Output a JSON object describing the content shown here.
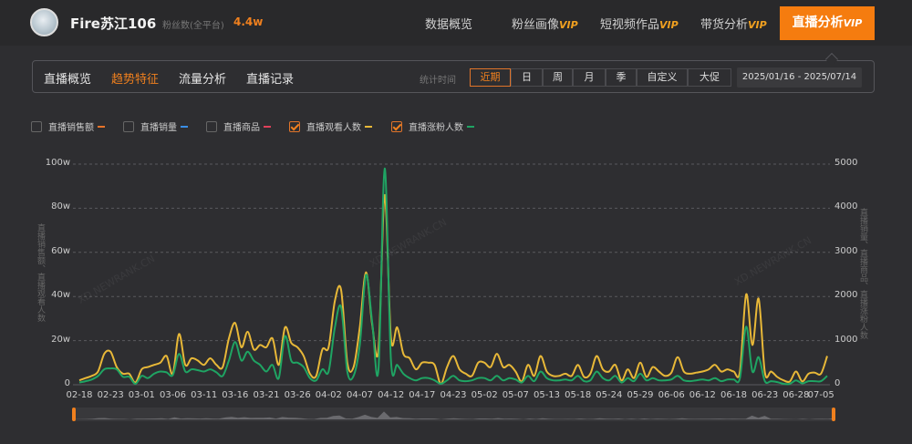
{
  "header": {
    "name": "Fire苏江106",
    "fans_label": "粉丝数(全平台)",
    "fans_value": "4.4w",
    "nav": [
      {
        "label": "数据概览",
        "vip": ""
      },
      {
        "label": "粉丝画像",
        "vip": "VIP"
      },
      {
        "label": "短视频作品",
        "vip": "VIP"
      },
      {
        "label": "带货分析",
        "vip": "VIP"
      },
      {
        "label": "直播分析",
        "vip": "VIP",
        "active": true
      }
    ]
  },
  "subnav": {
    "tabs": [
      "直播概览",
      "趋势特征",
      "流量分析",
      "直播记录"
    ],
    "active_tab": "趋势特征",
    "stat_time_label": "统计时间",
    "periods": [
      "近期",
      "日",
      "周",
      "月",
      "季",
      "自定义",
      "大促"
    ],
    "active_period": "近期",
    "date_range": "2025/01/16 - 2025/07/14"
  },
  "legend": [
    {
      "label": "直播销售额",
      "checked": false,
      "color": "#e8742a"
    },
    {
      "label": "直播销量",
      "checked": false,
      "color": "#3a8ee6"
    },
    {
      "label": "直播商品",
      "checked": false,
      "color": "#e0405a"
    },
    {
      "label": "直播观看人数",
      "checked": true,
      "color": "#e8b838"
    },
    {
      "label": "直播涨粉人数",
      "checked": true,
      "color": "#1fa463"
    }
  ],
  "watermark": "XD.NEWRANK.CN",
  "chart_data": {
    "type": "line",
    "left_axis": {
      "title": "直播销售额、直播观看人数",
      "ticks": [
        "0",
        "20w",
        "40w",
        "60w",
        "80w",
        "100w"
      ],
      "range": [
        0,
        100
      ],
      "unit": "w"
    },
    "right_axis": {
      "title": "直播销量、直播商品、直播涨粉人数",
      "ticks": [
        "0",
        "1000",
        "2000",
        "3000",
        "4000",
        "5000"
      ],
      "range": [
        0,
        5000
      ]
    },
    "grid": true,
    "x_ticks": [
      "02-18",
      "02-23",
      "03-01",
      "03-06",
      "03-11",
      "03-16",
      "03-21",
      "03-26",
      "04-02",
      "04-07",
      "04-12",
      "04-17",
      "04-23",
      "05-02",
      "05-07",
      "05-13",
      "05-18",
      "05-24",
      "05-29",
      "06-06",
      "06-12",
      "06-18",
      "06-23",
      "06-28",
      "07-05"
    ],
    "categories": [
      "02-18",
      "02-19",
      "02-20",
      "02-21",
      "02-22",
      "02-23",
      "02-24",
      "02-25",
      "02-27",
      "02-28",
      "03-01",
      "03-02",
      "03-03",
      "03-04",
      "03-05",
      "03-06",
      "03-07",
      "03-08",
      "03-09",
      "03-10",
      "03-11",
      "03-12",
      "03-13",
      "03-14",
      "03-15",
      "03-16",
      "03-17",
      "03-18",
      "03-19",
      "03-20",
      "03-21",
      "03-22",
      "03-23",
      "03-24",
      "03-25",
      "03-26",
      "03-27",
      "03-28",
      "03-30",
      "03-31",
      "04-02",
      "04-03",
      "04-04",
      "04-05",
      "04-06",
      "04-07",
      "04-08",
      "04-09",
      "04-10",
      "04-11",
      "04-12",
      "04-13",
      "04-14",
      "04-15",
      "04-16",
      "04-17",
      "04-18",
      "04-19",
      "04-21",
      "04-22",
      "04-23",
      "04-25",
      "04-27",
      "04-29",
      "04-30",
      "05-02",
      "05-03",
      "05-04",
      "05-05",
      "05-06",
      "05-07",
      "05-08",
      "05-10",
      "05-11",
      "05-12",
      "05-13",
      "05-14",
      "05-15",
      "05-16",
      "05-17",
      "05-18",
      "05-19",
      "05-20",
      "05-22",
      "05-23",
      "05-24",
      "05-25",
      "05-26",
      "05-27",
      "05-28",
      "05-29",
      "05-30",
      "06-01",
      "06-03",
      "06-04",
      "06-06",
      "06-07",
      "06-09",
      "06-10",
      "06-11",
      "06-12",
      "06-13",
      "06-15",
      "06-16",
      "06-17",
      "06-18",
      "06-19",
      "06-20",
      "06-21",
      "06-22",
      "06-23",
      "06-24",
      "06-25",
      "06-26",
      "06-27",
      "06-28",
      "06-30",
      "07-02",
      "07-03",
      "07-05",
      "07-06"
    ],
    "series": [
      {
        "name": "直播观看人数",
        "axis": "left",
        "color": "#e8b838",
        "values": [
          2,
          3,
          4,
          6,
          14,
          15,
          8,
          5,
          5,
          1,
          7,
          8,
          9,
          10,
          13,
          5,
          23,
          9,
          12,
          11,
          9,
          12,
          9,
          8,
          21,
          28,
          17,
          24,
          16,
          18,
          17,
          21,
          9,
          26,
          19,
          17,
          13,
          5,
          4,
          16,
          17,
          38,
          43,
          10,
          8,
          26,
          51,
          27,
          16,
          86,
          21,
          26,
          14,
          12,
          7,
          10,
          10,
          9,
          0.5,
          8,
          13,
          7,
          5,
          4,
          10,
          10,
          8,
          14,
          8,
          9,
          6,
          1.5,
          9,
          4,
          13,
          6,
          4,
          4,
          5,
          4,
          9,
          3.5,
          5,
          13,
          7,
          6,
          9,
          2,
          7,
          3,
          10,
          3.5,
          8,
          6,
          4,
          5.5,
          12.5,
          6,
          5,
          5.5,
          6,
          7,
          9,
          6,
          7,
          6,
          6,
          41,
          18,
          39,
          5.5,
          6,
          3.5,
          2,
          1.5,
          6,
          1.5,
          5,
          5.5,
          5,
          13
        ]
      },
      {
        "name": "直播涨粉人数",
        "axis": "right",
        "color": "#1fa463",
        "values": [
          50,
          80,
          120,
          200,
          350,
          370,
          350,
          180,
          180,
          20,
          200,
          150,
          250,
          300,
          280,
          220,
          700,
          300,
          350,
          330,
          300,
          350,
          280,
          200,
          550,
          970,
          550,
          750,
          550,
          450,
          300,
          450,
          150,
          1100,
          550,
          500,
          400,
          150,
          100,
          350,
          300,
          1300,
          1760,
          300,
          200,
          900,
          2490,
          1400,
          350,
          4900,
          550,
          450,
          250,
          150,
          100,
          150,
          150,
          100,
          20,
          100,
          200,
          100,
          80,
          100,
          150,
          150,
          100,
          200,
          100,
          150,
          120,
          50,
          200,
          80,
          300,
          150,
          100,
          100,
          120,
          100,
          200,
          80,
          100,
          300,
          150,
          100,
          200,
          50,
          150,
          80,
          250,
          100,
          150,
          100,
          100,
          120,
          200,
          100,
          80,
          100,
          120,
          100,
          150,
          80,
          120,
          120,
          150,
          1316,
          300,
          627,
          80,
          80,
          60,
          20,
          20,
          100,
          30,
          80,
          80,
          80,
          200
        ]
      }
    ]
  }
}
